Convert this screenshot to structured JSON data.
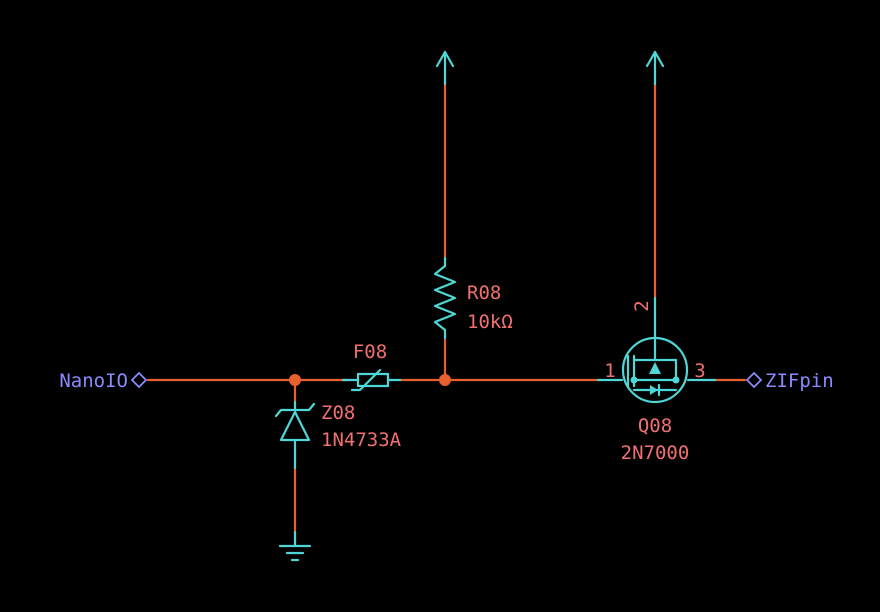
{
  "colors": {
    "background": "#000000",
    "wire": "#e8602c",
    "symbol": "#4fd6d6",
    "reference_text": "#f07070",
    "port_text": "#8a8aff"
  },
  "ports": {
    "input": "NanoIO",
    "output": "ZIFpin"
  },
  "components": {
    "resistor": {
      "ref": "R08",
      "value": "10kΩ"
    },
    "fuse": {
      "ref": "F08"
    },
    "zener": {
      "ref": "Z08",
      "value": "1N4733A"
    },
    "mosfet": {
      "ref": "Q08",
      "value": "2N7000",
      "pin_gate": "1",
      "pin_drain": "2",
      "pin_source": "3"
    }
  }
}
